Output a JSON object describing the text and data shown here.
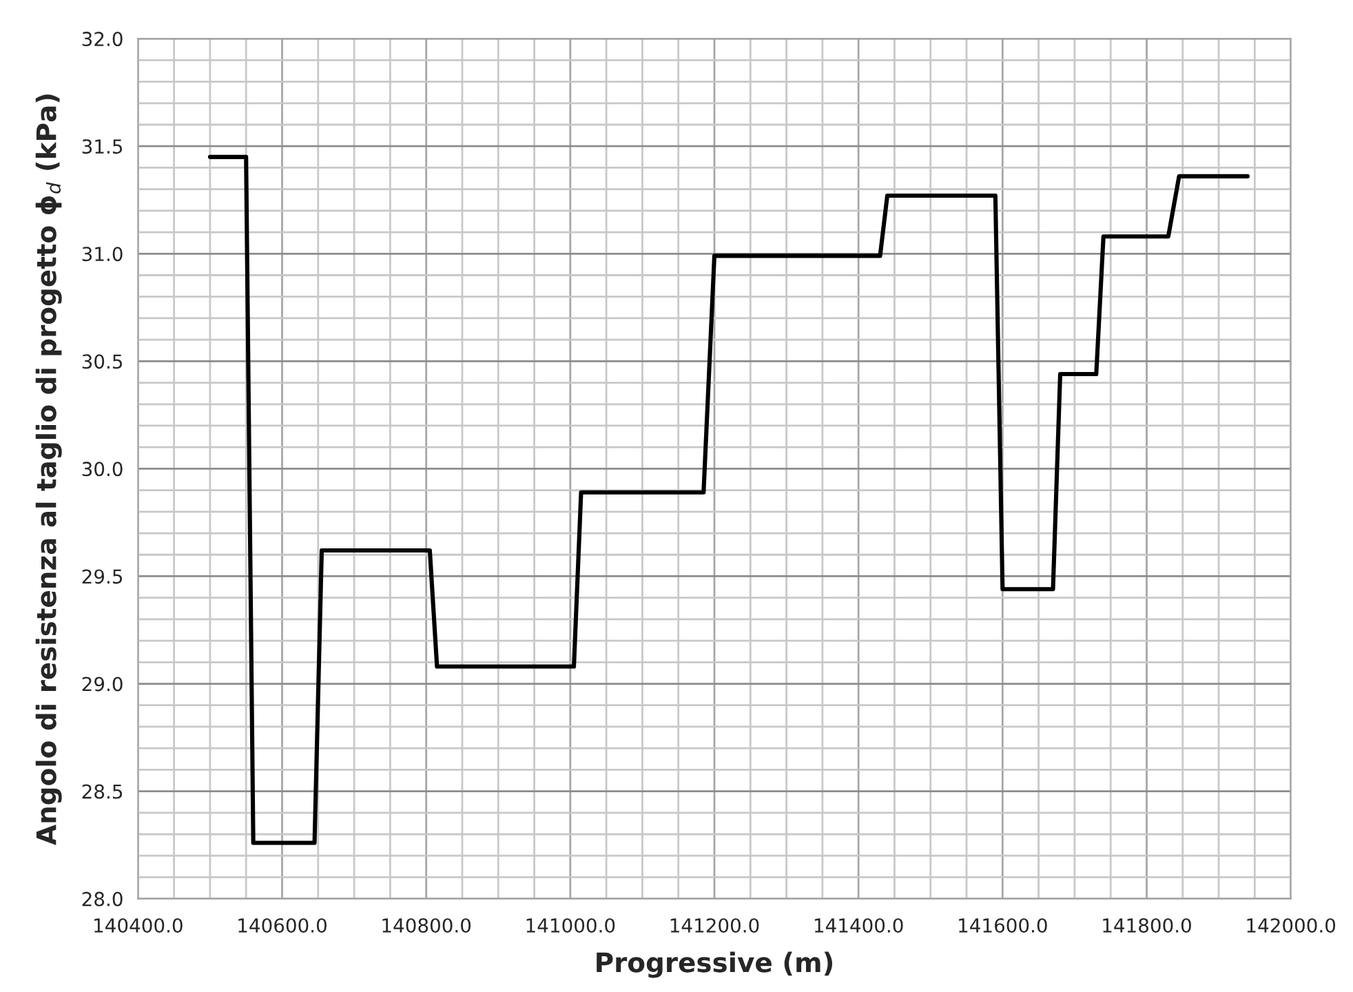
{
  "chart_data": {
    "type": "line",
    "xlabel": "Progressive (m)",
    "ylabel": "Angolo di resistenza al taglio di progetto ϕ$_{d}$ (kPa)",
    "series": [
      {
        "color": "#000000",
        "x": [
          140500,
          140550,
          140560,
          140645,
          140655,
          140805,
          140815,
          141005,
          141015,
          141185,
          141200,
          141430,
          141440,
          141590,
          141600,
          141670,
          141680,
          141730,
          141740,
          141830,
          141845,
          141940
        ],
        "values": [
          31.45,
          31.45,
          28.26,
          28.26,
          29.62,
          29.62,
          29.08,
          29.08,
          29.89,
          29.89,
          30.99,
          30.99,
          31.27,
          31.27,
          29.44,
          29.44,
          30.44,
          30.44,
          31.08,
          31.08,
          31.36,
          31.36
        ]
      }
    ],
    "xlim": [
      140400,
      142000
    ],
    "ylim": [
      28.0,
      32.0
    ],
    "xticks": [
      {
        "value": 140400,
        "label": "140400.0"
      },
      {
        "value": 140450,
        "label": null
      },
      {
        "value": 140500,
        "label": null
      },
      {
        "value": 140550,
        "label": null
      },
      {
        "value": 140600,
        "label": "140600.0"
      },
      {
        "value": 140650,
        "label": null
      },
      {
        "value": 140700,
        "label": null
      },
      {
        "value": 140750,
        "label": null
      },
      {
        "value": 140800,
        "label": "140800.0"
      },
      {
        "value": 140850,
        "label": null
      },
      {
        "value": 140900,
        "label": null
      },
      {
        "value": 140950,
        "label": null
      },
      {
        "value": 141000,
        "label": "141000.0"
      },
      {
        "value": 141050,
        "label": null
      },
      {
        "value": 141100,
        "label": null
      },
      {
        "value": 141150,
        "label": null
      },
      {
        "value": 141200,
        "label": "141200.0"
      },
      {
        "value": 141250,
        "label": null
      },
      {
        "value": 141300,
        "label": null
      },
      {
        "value": 141350,
        "label": null
      },
      {
        "value": 141400,
        "label": "141400.0"
      },
      {
        "value": 141450,
        "label": null
      },
      {
        "value": 141500,
        "label": null
      },
      {
        "value": 141550,
        "label": null
      },
      {
        "value": 141600,
        "label": "141600.0"
      },
      {
        "value": 141650,
        "label": null
      },
      {
        "value": 141700,
        "label": null
      },
      {
        "value": 141750,
        "label": null
      },
      {
        "value": 141800,
        "label": "141800.0"
      },
      {
        "value": 141850,
        "label": null
      },
      {
        "value": 141900,
        "label": null
      },
      {
        "value": 141950,
        "label": null
      },
      {
        "value": 142000,
        "label": "142000.0"
      }
    ],
    "yticks": [
      {
        "value": 28.0,
        "label": "28.0"
      },
      {
        "value": 28.1,
        "label": null
      },
      {
        "value": 28.2,
        "label": null
      },
      {
        "value": 28.3,
        "label": null
      },
      {
        "value": 28.4,
        "label": null
      },
      {
        "value": 28.5,
        "label": "28.5"
      },
      {
        "value": 28.6,
        "label": null
      },
      {
        "value": 28.7,
        "label": null
      },
      {
        "value": 28.8,
        "label": null
      },
      {
        "value": 28.9,
        "label": null
      },
      {
        "value": 29.0,
        "label": "29.0"
      },
      {
        "value": 29.1,
        "label": null
      },
      {
        "value": 29.2,
        "label": null
      },
      {
        "value": 29.3,
        "label": null
      },
      {
        "value": 29.4,
        "label": null
      },
      {
        "value": 29.5,
        "label": "29.5"
      },
      {
        "value": 29.6,
        "label": null
      },
      {
        "value": 29.7,
        "label": null
      },
      {
        "value": 29.8,
        "label": null
      },
      {
        "value": 29.9,
        "label": null
      },
      {
        "value": 30.0,
        "label": "30.0"
      },
      {
        "value": 30.1,
        "label": null
      },
      {
        "value": 30.2,
        "label": null
      },
      {
        "value": 30.3,
        "label": null
      },
      {
        "value": 30.4,
        "label": null
      },
      {
        "value": 30.5,
        "label": "30.5"
      },
      {
        "value": 30.6,
        "label": null
      },
      {
        "value": 30.7,
        "label": null
      },
      {
        "value": 30.8,
        "label": null
      },
      {
        "value": 30.9,
        "label": null
      },
      {
        "value": 31.0,
        "label": "31.0"
      },
      {
        "value": 31.1,
        "label": null
      },
      {
        "value": 31.2,
        "label": null
      },
      {
        "value": 31.3,
        "label": null
      },
      {
        "value": 31.4,
        "label": null
      },
      {
        "value": 31.5,
        "label": "31.5"
      },
      {
        "value": 31.6,
        "label": null
      },
      {
        "value": 31.7,
        "label": null
      },
      {
        "value": 31.8,
        "label": null
      },
      {
        "value": 31.9,
        "label": null
      },
      {
        "value": 32.0,
        "label": "32.0"
      }
    ],
    "grid": true,
    "marker": "none",
    "line_style": "solid"
  }
}
